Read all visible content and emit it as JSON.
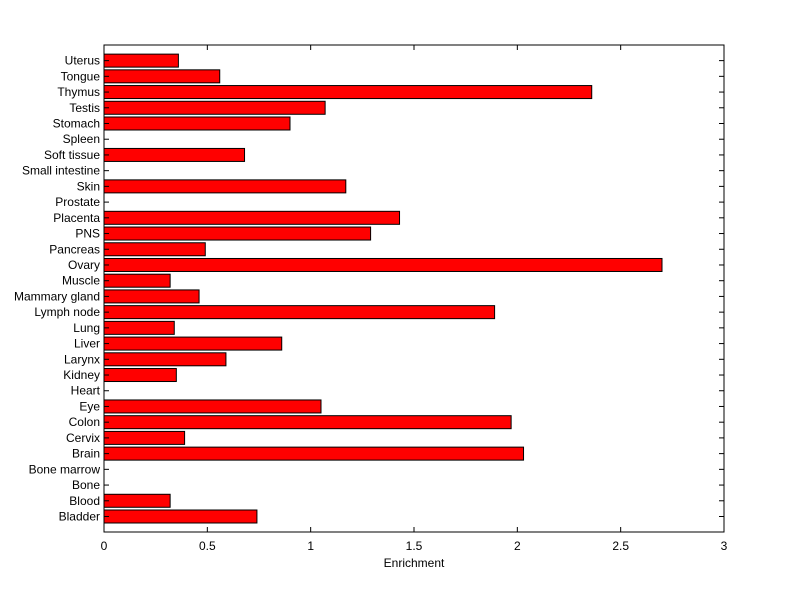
{
  "chart_data": {
    "type": "bar",
    "orientation": "horizontal",
    "title": "",
    "xlabel": "Enrichment",
    "ylabel": "",
    "xlim": [
      0,
      3
    ],
    "xticks": [
      0,
      0.5,
      1,
      1.5,
      2,
      2.5,
      3
    ],
    "xtick_labels": [
      "0",
      "0.5",
      "1",
      "1.5",
      "2",
      "2.5",
      "3"
    ],
    "grid": false,
    "legend": "none",
    "bar_color": "#ff0000",
    "bar_edge_color": "#000000",
    "categories": [
      "Bladder",
      "Blood",
      "Bone",
      "Bone marrow",
      "Brain",
      "Cervix",
      "Colon",
      "Eye",
      "Heart",
      "Kidney",
      "Larynx",
      "Liver",
      "Lung",
      "Lymph node",
      "Mammary gland",
      "Muscle",
      "Ovary",
      "Pancreas",
      "PNS",
      "Placenta",
      "Prostate",
      "Skin",
      "Small intestine",
      "Soft tissue",
      "Spleen",
      "Stomach",
      "Testis",
      "Thymus",
      "Tongue",
      "Uterus"
    ],
    "values": [
      0.74,
      0.32,
      0,
      0,
      2.03,
      0.39,
      1.97,
      1.05,
      0,
      0.35,
      0.59,
      0.86,
      0.34,
      1.89,
      0.46,
      0.32,
      2.7,
      0.49,
      1.29,
      1.43,
      0,
      1.17,
      0,
      0.68,
      0,
      0.9,
      1.07,
      2.36,
      0.56,
      0.36
    ]
  }
}
